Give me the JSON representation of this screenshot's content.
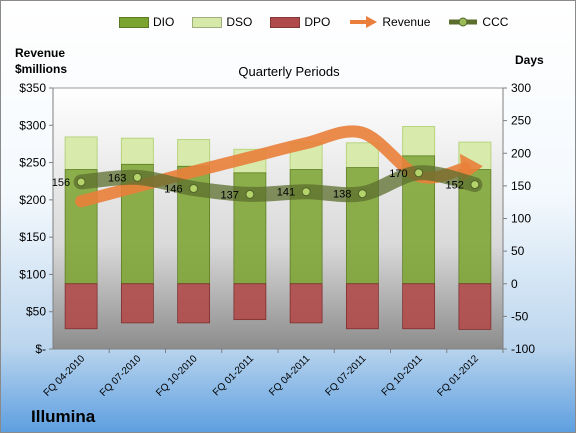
{
  "chart_data": {
    "type": "bar",
    "title": "Quarterly Periods",
    "company": "Illumina",
    "ylabel_left": [
      "Revenue",
      "$millions"
    ],
    "ylabel_right": "Days",
    "categories": [
      "FQ 04-2010",
      "FQ 07-2010",
      "FQ 10-2010",
      "FQ 01-2011",
      "FQ 04-2011",
      "FQ 07-2011",
      "FQ 10-2011",
      "FQ 01-2012"
    ],
    "left_axis": {
      "ylim": [
        0,
        350
      ],
      "ticks": [
        "$-",
        "$50",
        "$100",
        "$150",
        "$200",
        "$250",
        "$300",
        "$350"
      ]
    },
    "right_axis": {
      "ylim": [
        -100,
        300
      ],
      "ticks": [
        "-100",
        "-50",
        "0",
        "50",
        "100",
        "150",
        "200",
        "250",
        "300"
      ]
    },
    "series": [
      {
        "name": "DIO",
        "type": "stacked-bar",
        "axis": "right",
        "color": "#7aa32f",
        "values": [
          175,
          183,
          180,
          170,
          175,
          178,
          196,
          175
        ]
      },
      {
        "name": "DSO",
        "type": "stacked-bar",
        "axis": "right",
        "color": "#d6e9a8",
        "values": [
          50,
          40,
          41,
          36,
          42,
          38,
          45,
          42
        ]
      },
      {
        "name": "DPO",
        "type": "bar-negative",
        "axis": "right",
        "color": "#b04a4a",
        "values": [
          -69,
          -60,
          -60,
          -55,
          -60,
          -69,
          -69,
          -70
        ]
      },
      {
        "name": "Revenue",
        "type": "line",
        "axis": "left",
        "color": "#e97f3a",
        "values": [
          198,
          218,
          238,
          257,
          276,
          290,
          232,
          245
        ]
      },
      {
        "name": "CCC",
        "type": "line",
        "axis": "right",
        "color": "#5c6e2e",
        "values": [
          156,
          163,
          146,
          137,
          141,
          138,
          170,
          152
        ],
        "labels": [
          "156",
          "163",
          "146",
          "137",
          "141",
          "138",
          "170",
          "152"
        ]
      }
    ],
    "grid": false,
    "legend": "top"
  }
}
